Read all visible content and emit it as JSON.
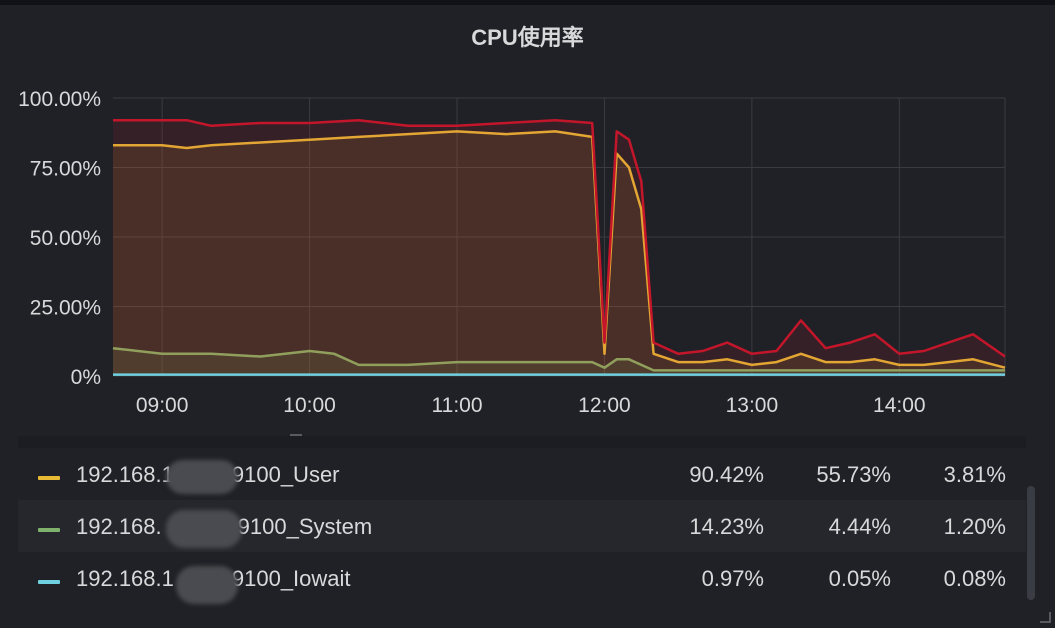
{
  "panel": {
    "title": "CPU使用率"
  },
  "colors": {
    "user": "#e8b935",
    "system": "#7eb26d",
    "iowait": "#6ed0e0",
    "peak": "#c4162a",
    "grid": "#3a3b40",
    "text": "#d8d9da"
  },
  "chart_data": {
    "type": "line",
    "title": "CPU使用率",
    "x_tick_labels": [
      "09:00",
      "10:00",
      "11:00",
      "12:00",
      "13:00",
      "14:00"
    ],
    "y_tick_labels": [
      "100.00%",
      "75.00%",
      "50.00%",
      "25.00%",
      "0%"
    ],
    "ylim": [
      0,
      100
    ],
    "x_range": [
      "08:40",
      "14:43"
    ],
    "grid": true,
    "legend_placement": "bottom-table",
    "series": [
      {
        "name": "",
        "color": "#c4162a",
        "x": [
          "08:40",
          "09:00",
          "09:10",
          "09:20",
          "09:40",
          "10:00",
          "10:20",
          "10:40",
          "11:00",
          "11:20",
          "11:40",
          "11:55",
          "12:00",
          "12:05",
          "12:10",
          "12:15",
          "12:20",
          "12:30",
          "12:40",
          "12:50",
          "13:00",
          "13:10",
          "13:20",
          "13:30",
          "13:40",
          "13:50",
          "14:00",
          "14:10",
          "14:20",
          "14:30",
          "14:43"
        ],
        "values": [
          92,
          92,
          92,
          90,
          91,
          91,
          92,
          90,
          90,
          91,
          92,
          91,
          12,
          88,
          85,
          70,
          12,
          8,
          9,
          12,
          8,
          9,
          20,
          10,
          12,
          15,
          8,
          9,
          12,
          15,
          7
        ]
      },
      {
        "name": "192.168.1 9100_User",
        "color": "#e8b935",
        "x": [
          "08:40",
          "09:00",
          "09:10",
          "09:20",
          "09:40",
          "10:00",
          "10:20",
          "10:40",
          "11:00",
          "11:20",
          "11:40",
          "11:55",
          "12:00",
          "12:05",
          "12:10",
          "12:15",
          "12:20",
          "12:30",
          "12:40",
          "12:50",
          "13:00",
          "13:10",
          "13:20",
          "13:30",
          "13:40",
          "13:50",
          "14:00",
          "14:10",
          "14:20",
          "14:30",
          "14:43"
        ],
        "values": [
          83,
          83,
          82,
          83,
          84,
          85,
          86,
          87,
          88,
          87,
          88,
          86,
          8,
          80,
          75,
          60,
          8,
          5,
          5,
          6,
          4,
          5,
          8,
          5,
          5,
          6,
          4,
          4,
          5,
          6,
          3
        ]
      },
      {
        "name": "192.168. 9100_System",
        "color": "#7eb26d",
        "x": [
          "08:40",
          "09:00",
          "09:20",
          "09:40",
          "10:00",
          "10:10",
          "10:20",
          "10:40",
          "11:00",
          "11:20",
          "11:40",
          "11:55",
          "12:00",
          "12:05",
          "12:10",
          "12:20",
          "12:40",
          "13:00",
          "13:20",
          "13:40",
          "14:00",
          "14:20",
          "14:43"
        ],
        "values": [
          10,
          8,
          8,
          7,
          9,
          8,
          4,
          4,
          5,
          5,
          5,
          5,
          3,
          6,
          6,
          2,
          2,
          2,
          2,
          2,
          2,
          2,
          2
        ]
      },
      {
        "name": "192.168.1 9100_Iowait",
        "color": "#6ed0e0",
        "x": [
          "08:40",
          "14:43"
        ],
        "values": [
          0.5,
          0.5
        ]
      }
    ],
    "legend_values": [
      {
        "name": "192.168.1 9100_User",
        "max": "90.42%",
        "avg": "55.73%",
        "current": "3.81%"
      },
      {
        "name": "192.168. 9100_System",
        "max": "14.23%",
        "avg": "4.44%",
        "current": "1.20%"
      },
      {
        "name": "192.168.1 9100_Iowait",
        "max": "0.97%",
        "avg": "0.05%",
        "current": "0.08%"
      }
    ]
  },
  "legend": {
    "rows": [
      {
        "name": "192.168.1",
        "suffix": "9100_User",
        "max": "90.42%",
        "avg": "55.73%",
        "current": "3.81%"
      },
      {
        "name": "192.168.",
        "suffix": "9100_System",
        "max": "14.23%",
        "avg": "4.44%",
        "current": "1.20%"
      },
      {
        "name": "192.168.1",
        "suffix": "9100_Iowait",
        "max": "0.97%",
        "avg": "0.05%",
        "current": "0.08%"
      }
    ]
  }
}
